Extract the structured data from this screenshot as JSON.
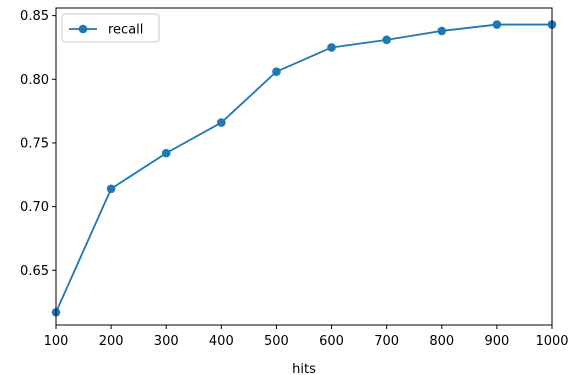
{
  "chart_data": {
    "type": "line",
    "xlabel": "hits",
    "ylabel": "",
    "xlim": [
      100,
      1000
    ],
    "ylim": [
      0.607,
      0.856
    ],
    "x_ticks": [
      100,
      200,
      300,
      400,
      500,
      600,
      700,
      800,
      900,
      1000
    ],
    "y_ticks": [
      "0.65",
      "0.70",
      "0.75",
      "0.80",
      "0.85"
    ],
    "grid": false,
    "legend": {
      "placement": "upper-left"
    },
    "series": [
      {
        "name": "recall",
        "color": "#1f77b4",
        "marker": "circle",
        "x": [
          100,
          200,
          300,
          400,
          500,
          600,
          700,
          800,
          900,
          1000
        ],
        "y": [
          0.617,
          0.714,
          0.742,
          0.766,
          0.806,
          0.825,
          0.831,
          0.838,
          0.843,
          0.843
        ]
      }
    ]
  }
}
